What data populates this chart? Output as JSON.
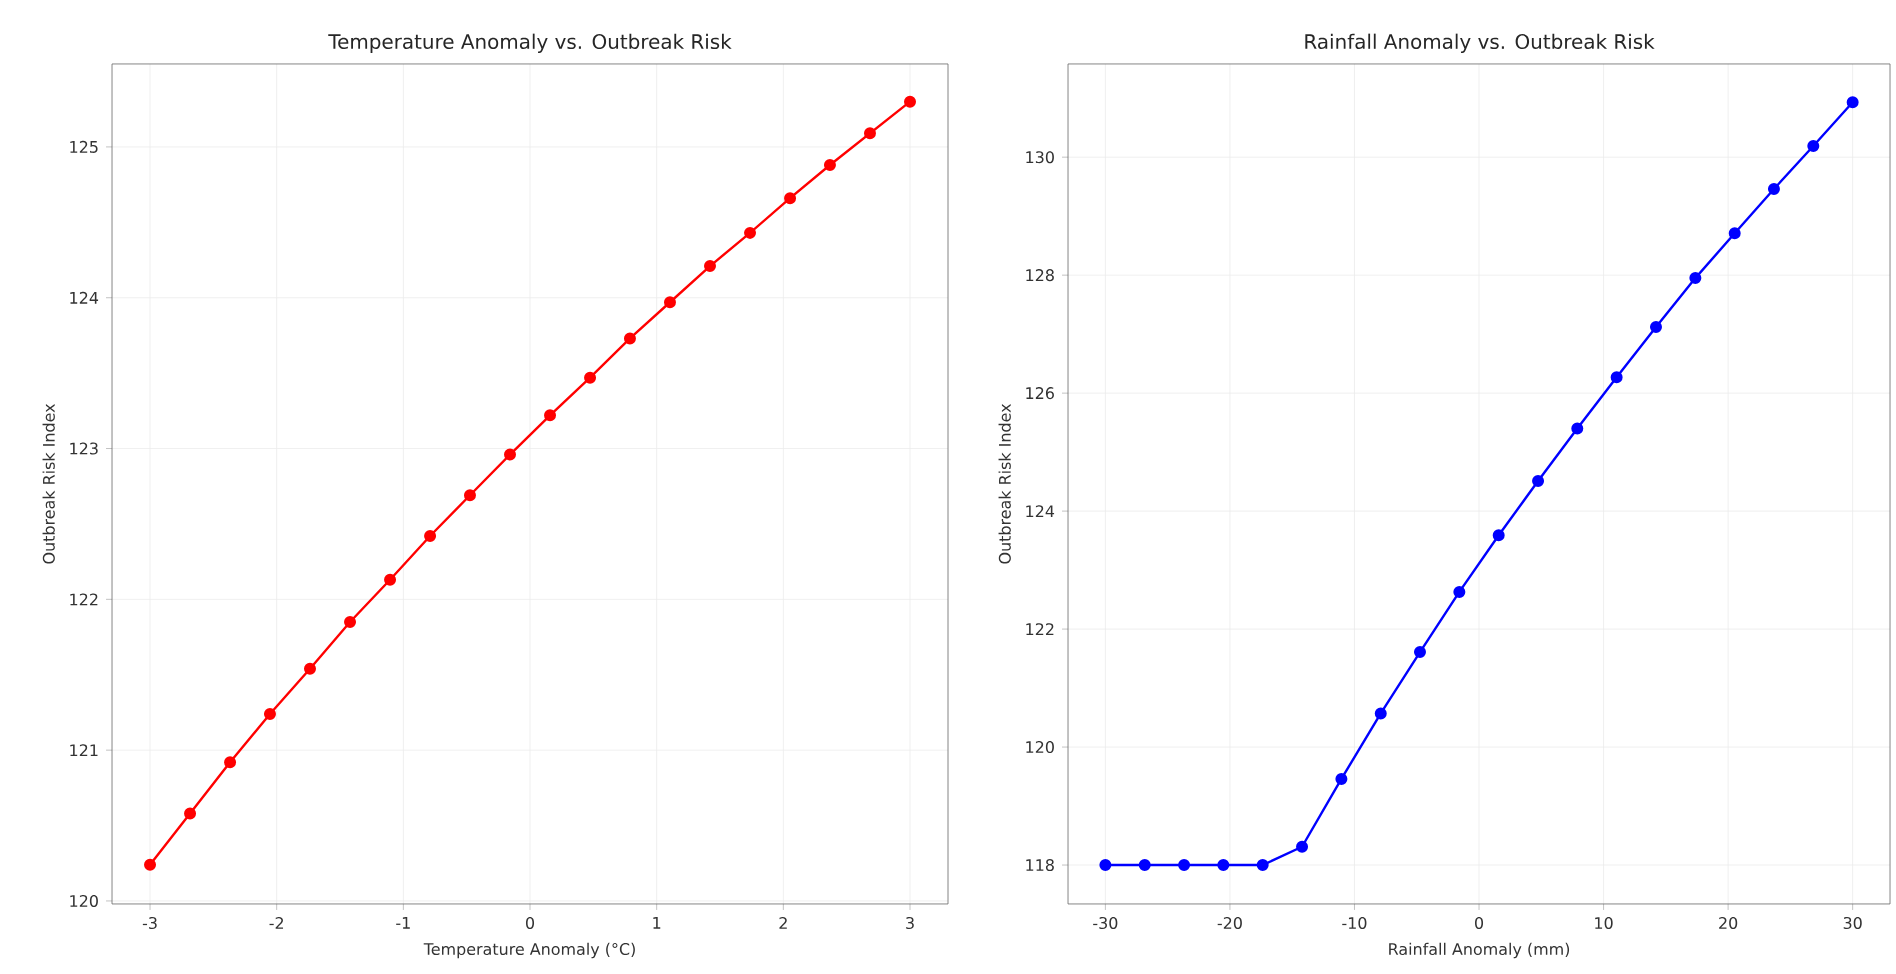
{
  "chart_data": [
    {
      "type": "line",
      "title": "Temperature Anomaly vs. Outbreak Risk",
      "xlabel": "Temperature Anomaly (°C)",
      "ylabel": "Outbreak Risk Index",
      "x": [
        -3,
        -2.684,
        -2.368,
        -2.053,
        -1.737,
        -1.421,
        -1.105,
        -0.789,
        -0.474,
        -0.158,
        0.158,
        0.474,
        0.789,
        1.105,
        1.421,
        1.737,
        2.053,
        2.368,
        2.684,
        3
      ],
      "series": [
        {
          "color": "#ff0000",
          "values": [
            120.24,
            120.58,
            120.92,
            121.24,
            121.54,
            121.85,
            122.13,
            122.42,
            122.69,
            122.96,
            123.22,
            123.47,
            123.73,
            123.97,
            124.21,
            124.43,
            124.66,
            124.88,
            125.09,
            125.3
          ]
        }
      ],
      "xlim": [
        -3.3,
        3.3
      ],
      "ylim": [
        119.98,
        125.55
      ],
      "xticks": [
        -3,
        -2,
        -1,
        0,
        1,
        2,
        3
      ],
      "yticks": [
        120,
        121,
        122,
        123,
        124,
        125
      ],
      "grid": true,
      "marker": "circle",
      "line_style": "solid"
    },
    {
      "type": "line",
      "title": "Rainfall Anomaly vs. Outbreak Risk",
      "xlabel": "Rainfall Anomaly (mm)",
      "ylabel": "Outbreak Risk Index",
      "x": [
        -30,
        -26.84,
        -23.68,
        -20.53,
        -17.37,
        -14.21,
        -11.05,
        -7.89,
        -4.74,
        -1.58,
        1.58,
        4.74,
        7.89,
        11.05,
        14.21,
        17.37,
        20.53,
        23.68,
        26.84,
        30
      ],
      "series": [
        {
          "color": "#0000ff",
          "values": [
            118,
            118,
            118,
            118,
            118,
            118.31,
            119.46,
            120.57,
            121.61,
            122.63,
            123.59,
            124.51,
            125.4,
            126.27,
            127.12,
            127.95,
            128.71,
            129.46,
            130.19,
            130.93
          ]
        }
      ],
      "xlim": [
        -33,
        33
      ],
      "ylim": [
        117.34,
        131.58
      ],
      "xticks": [
        -30,
        -20,
        -10,
        0,
        10,
        20,
        30
      ],
      "yticks": [
        118,
        120,
        122,
        124,
        126,
        128,
        130
      ],
      "grid": true,
      "marker": "circle",
      "line_style": "solid"
    }
  ]
}
